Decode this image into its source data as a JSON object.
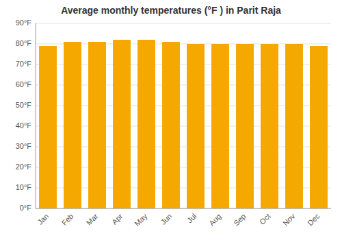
{
  "chart_data": {
    "type": "bar",
    "title": "Average monthly temperatures (°F ) in Parit Raja",
    "categories": [
      "Jan",
      "Feb",
      "Mar",
      "Apr",
      "May",
      "Jun",
      "Jul",
      "Aug",
      "Sep",
      "Oct",
      "Nov",
      "Dec"
    ],
    "values": [
      79,
      81,
      81,
      82,
      82,
      81,
      80,
      80,
      80,
      80,
      80,
      79
    ],
    "color": "#F5A800",
    "ylim": [
      0,
      90
    ],
    "yticks": [
      {
        "value": 0,
        "label": "0°F"
      },
      {
        "value": 10,
        "label": "10°F"
      },
      {
        "value": 20,
        "label": "20°F"
      },
      {
        "value": 30,
        "label": "30°F"
      },
      {
        "value": 40,
        "label": "40°F"
      },
      {
        "value": 50,
        "label": "50°F"
      },
      {
        "value": 60,
        "label": "60°F"
      },
      {
        "value": 70,
        "label": "70°F"
      },
      {
        "value": 80,
        "label": "80°F"
      },
      {
        "value": 90,
        "label": "90°F"
      }
    ],
    "grid": true
  }
}
